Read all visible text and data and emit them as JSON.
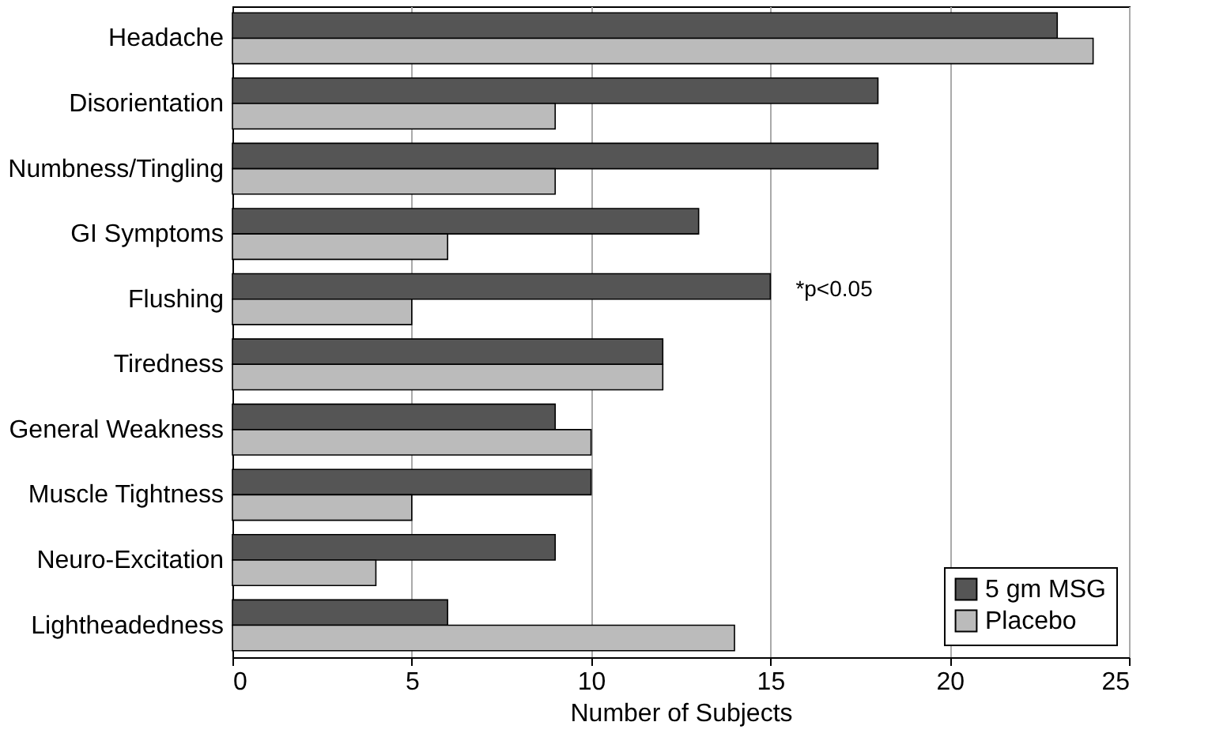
{
  "chart_data": {
    "type": "bar",
    "orientation": "horizontal",
    "xlabel": "Number of Subjects",
    "categories": [
      "Headache",
      "Disorientation",
      "Numbness/Tingling",
      "GI Symptoms",
      "Flushing",
      "Tiredness",
      "General Weakness",
      "Muscle Tightness",
      "Neuro-Excitation",
      "Lightheadedness"
    ],
    "series": [
      {
        "name": "5 gm MSG",
        "color": "#555555",
        "values": [
          23,
          18,
          18,
          13,
          15,
          12,
          9,
          10,
          9,
          6
        ]
      },
      {
        "name": "Placebo",
        "color": "#bbbbbb",
        "values": [
          24,
          9,
          9,
          6,
          5,
          12,
          10,
          5,
          4,
          14
        ]
      }
    ],
    "xlim": [
      0,
      25
    ],
    "xticks": [
      0,
      5,
      10,
      15,
      20,
      25
    ],
    "grid": "x",
    "legend": "bottom right",
    "annotations": [
      {
        "text": "*p<0.05",
        "x": 15,
        "y": "Flushing"
      }
    ]
  }
}
